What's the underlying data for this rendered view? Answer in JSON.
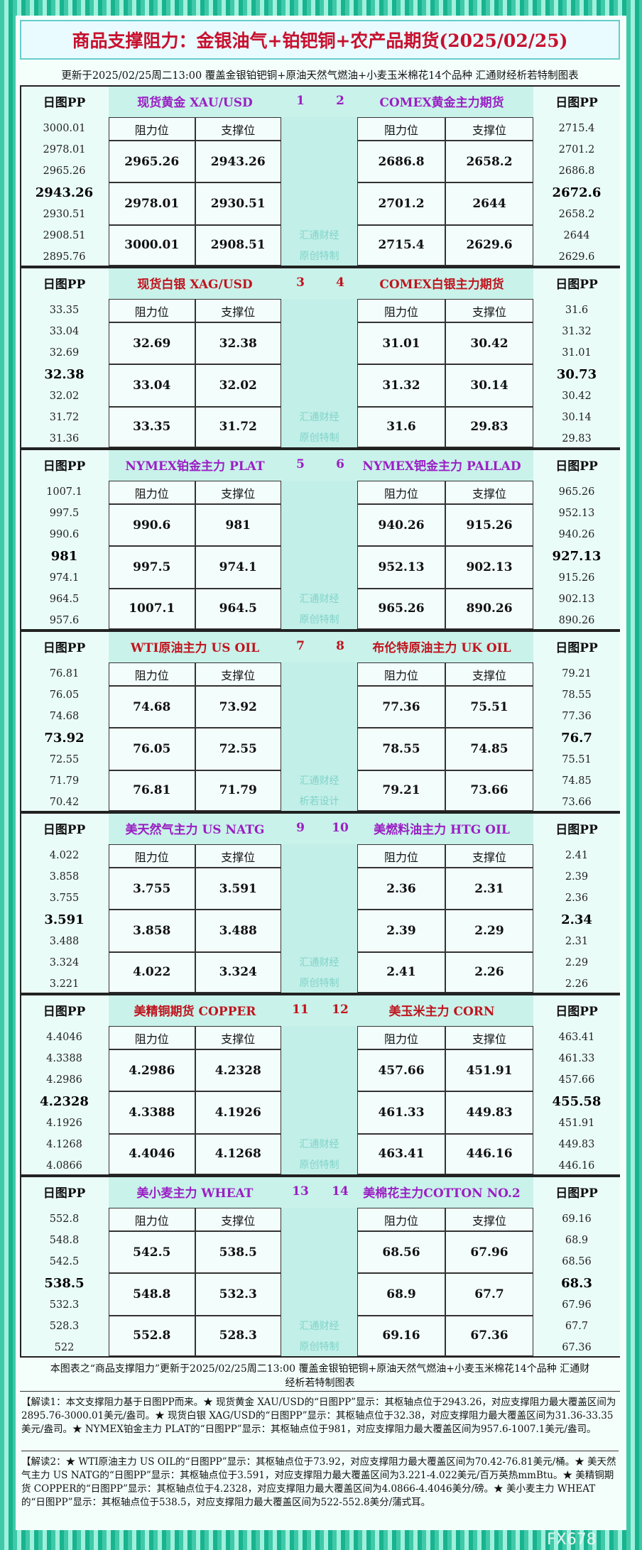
{
  "header": {
    "title": "商品支撑阻力：金银油气+铂钯铜+农产品期货(2025/02/25)",
    "subtitle": "更新于2025/02/25周二13:00  覆盖金银铂钯铜+原油天然气燃油+小麦玉米棉花14个品种  汇通财经析若特制图表"
  },
  "labels": {
    "pp": "日图PP",
    "resistance": "阻力位",
    "support": "支撑位"
  },
  "sections": [
    {
      "color": "#9a1fc4",
      "watermark": [
        "汇通财经",
        "原创特制"
      ],
      "left": {
        "name": "现货黄金 XAU/USD",
        "number": 1,
        "pp": [
          3000.01,
          2978.01,
          2965.26,
          2943.26,
          2930.51,
          2908.51,
          2895.76
        ],
        "levels": [
          [
            2965.26,
            2943.26
          ],
          [
            2978.01,
            2930.51
          ],
          [
            3000.01,
            2908.51
          ]
        ]
      },
      "right": {
        "name": "COMEX黄金主力期货",
        "number": 2,
        "pp": [
          2715.4,
          2701.2,
          2686.8,
          2672.6,
          2658.2,
          2644,
          2629.6
        ],
        "levels": [
          [
            2686.8,
            2658.2
          ],
          [
            2701.2,
            2644
          ],
          [
            2715.4,
            2629.6
          ]
        ]
      }
    },
    {
      "color": "#c0141e",
      "watermark": [
        "汇通财经",
        "原创特制"
      ],
      "left": {
        "name": "现货白银 XAG/USD",
        "number": 3,
        "pp": [
          33.35,
          33.04,
          32.69,
          32.38,
          32.02,
          31.72,
          31.36
        ],
        "levels": [
          [
            32.69,
            32.38
          ],
          [
            33.04,
            32.02
          ],
          [
            33.35,
            31.72
          ]
        ]
      },
      "right": {
        "name": "COMEX白银主力期货",
        "number": 4,
        "pp": [
          31.6,
          31.32,
          31.01,
          30.73,
          30.42,
          30.14,
          29.83
        ],
        "levels": [
          [
            31.01,
            30.42
          ],
          [
            31.32,
            30.14
          ],
          [
            31.6,
            29.83
          ]
        ]
      }
    },
    {
      "color": "#9a1fc4",
      "watermark": [
        "汇通财经",
        "原创特制"
      ],
      "left": {
        "name": "NYMEX铂金主力 PLAT",
        "number": 5,
        "pp": [
          1007.1,
          997.5,
          990.6,
          981,
          974.1,
          964.5,
          957.6
        ],
        "levels": [
          [
            990.6,
            981
          ],
          [
            997.5,
            974.1
          ],
          [
            1007.1,
            964.5
          ]
        ]
      },
      "right": {
        "name": "NYMEX钯金主力 PALLAD",
        "number": 6,
        "pp": [
          965.26,
          952.13,
          940.26,
          927.13,
          915.26,
          902.13,
          890.26
        ],
        "levels": [
          [
            940.26,
            915.26
          ],
          [
            952.13,
            902.13
          ],
          [
            965.26,
            890.26
          ]
        ]
      }
    },
    {
      "color": "#c0141e",
      "watermark": [
        "汇通财经",
        "析若设计"
      ],
      "left": {
        "name": "WTI原油主力 US OIL",
        "number": 7,
        "pp": [
          76.81,
          76.05,
          74.68,
          73.92,
          72.55,
          71.79,
          70.42
        ],
        "levels": [
          [
            74.68,
            73.92
          ],
          [
            76.05,
            72.55
          ],
          [
            76.81,
            71.79
          ]
        ]
      },
      "right": {
        "name": "布伦特原油主力 UK OIL",
        "number": 8,
        "pp": [
          79.21,
          78.55,
          77.36,
          76.7,
          75.51,
          74.85,
          73.66
        ],
        "levels": [
          [
            77.36,
            75.51
          ],
          [
            78.55,
            74.85
          ],
          [
            79.21,
            73.66
          ]
        ]
      }
    },
    {
      "color": "#9a1fc4",
      "watermark": [
        "汇通财经",
        "原创特制"
      ],
      "left": {
        "name": "美天然气主力 US NATG",
        "number": 9,
        "pp": [
          4.022,
          3.858,
          3.755,
          3.591,
          3.488,
          3.324,
          3.221
        ],
        "levels": [
          [
            3.755,
            3.591
          ],
          [
            3.858,
            3.488
          ],
          [
            4.022,
            3.324
          ]
        ]
      },
      "right": {
        "name": "美燃料油主力 HTG OIL",
        "number": 10,
        "pp": [
          2.41,
          2.39,
          2.36,
          2.34,
          2.31,
          2.29,
          2.26
        ],
        "levels": [
          [
            2.36,
            2.31
          ],
          [
            2.39,
            2.29
          ],
          [
            2.41,
            2.26
          ]
        ]
      }
    },
    {
      "color": "#c0141e",
      "watermark": [
        "汇通财经",
        "原创特制"
      ],
      "left": {
        "name": "美精铜期货 COPPER",
        "number": 11,
        "pp": [
          4.4046,
          4.3388,
          4.2986,
          4.2328,
          4.1926,
          4.1268,
          4.0866
        ],
        "levels": [
          [
            4.2986,
            4.2328
          ],
          [
            4.3388,
            4.1926
          ],
          [
            4.4046,
            4.1268
          ]
        ]
      },
      "right": {
        "name": "美玉米主力 CORN",
        "number": 12,
        "pp": [
          463.41,
          461.33,
          457.66,
          455.58,
          451.91,
          449.83,
          446.16
        ],
        "levels": [
          [
            457.66,
            451.91
          ],
          [
            461.33,
            449.83
          ],
          [
            463.41,
            446.16
          ]
        ]
      }
    },
    {
      "color": "#9a1fc4",
      "watermark": [
        "汇通财经",
        "原创特制"
      ],
      "left": {
        "name": "美小麦主力 WHEAT",
        "number": 13,
        "pp": [
          552.8,
          548.8,
          542.5,
          538.5,
          532.3,
          528.3,
          522
        ],
        "levels": [
          [
            542.5,
            538.5
          ],
          [
            548.8,
            532.3
          ],
          [
            552.8,
            528.3
          ]
        ]
      },
      "right": {
        "name": "美棉花主力COTTON NO.2",
        "number": 14,
        "pp": [
          69.16,
          68.9,
          68.56,
          68.3,
          67.96,
          67.7,
          67.36
        ],
        "levels": [
          [
            68.56,
            67.96
          ],
          [
            68.9,
            67.7
          ],
          [
            69.16,
            67.36
          ]
        ]
      }
    }
  ],
  "footer": {
    "note": "本图表之“商品支撑阻力”更新于2025/02/25周二13:00  覆盖金银铂钯铜+原油天然气燃油+小麦玉米棉花14个品种  汇通财经析若特制图表",
    "interpretation_1": "【解读1：本文支撑阻力基于日图PP而来。★ 现货黄金 XAU/USD的“日图PP”显示：其枢轴点位于2943.26，对应支撑阻力最大覆盖区间为2895.76-3000.01美元/盎司。★ 现货白银 XAG/USD的“日图PP”显示：其枢轴点位于32.38，对应支撑阻力最大覆盖区间为31.36-33.35美元/盎司。★ NYMEX铂金主力 PLAT的“日图PP”显示：其枢轴点位于981，对应支撑阻力最大覆盖区间为957.6-1007.1美元/盎司。",
    "interpretation_2": "【解读2：★ WTI原油主力 US OIL的“日图PP”显示：其枢轴点位于73.92，对应支撑阻力最大覆盖区间为70.42-76.81美元/桶。★ 美天然气主力 US NATG的“日图PP”显示：其枢轴点位于3.591，对应支撑阻力最大覆盖区间为3.221-4.022美元/百万英热mmBtu。★ 美精铜期货 COPPER的“日图PP”显示：其枢轴点位于4.2328，对应支撑阻力最大覆盖区间为4.0866-4.4046美分/磅。★ 美小麦主力 WHEAT的“日图PP”显示：其枢轴点位于538.5，对应支撑阻力最大覆盖区间为522-552.8美分/蒲式耳。"
  },
  "watermark": "FX678"
}
